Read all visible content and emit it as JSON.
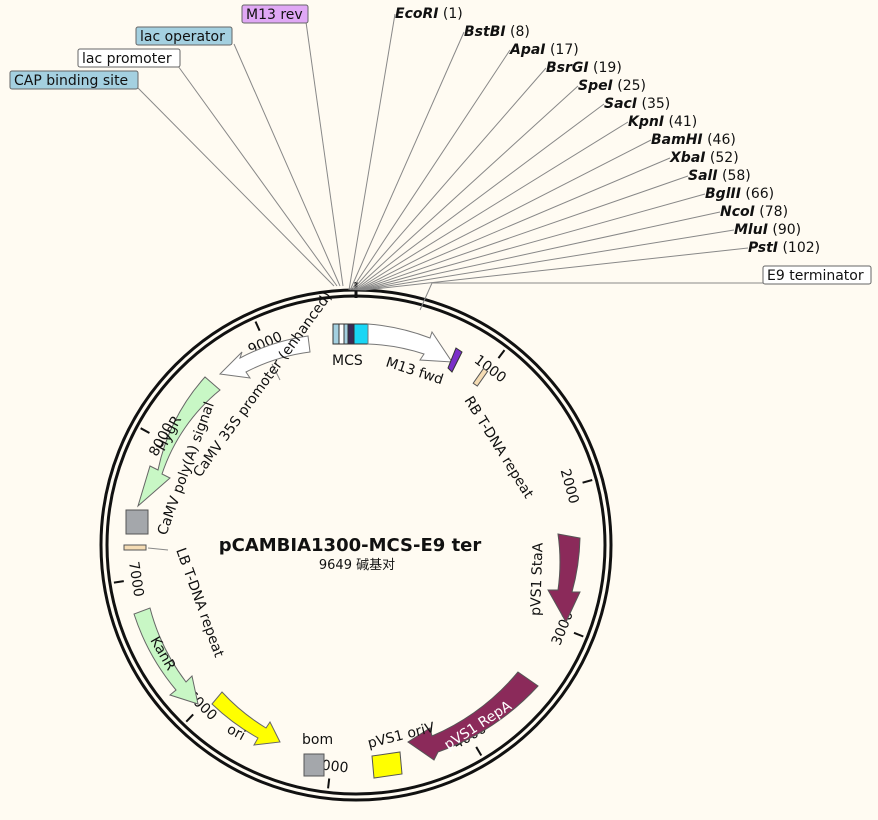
{
  "plasmid": {
    "name": "pCAMBIA1300-MCS-E9 ter",
    "size_label": "9649 碱基对",
    "length": 9649
  },
  "ticks": [
    "1000",
    "2000",
    "3000",
    "4000",
    "5000",
    "6000",
    "7000",
    "8000",
    "9000"
  ],
  "enzymes": [
    {
      "name": "EcoRI",
      "pos": "(1)"
    },
    {
      "name": "BstBI",
      "pos": "(8)"
    },
    {
      "name": "ApaI",
      "pos": "(17)"
    },
    {
      "name": "BsrGI",
      "pos": "(19)"
    },
    {
      "name": "SpeI",
      "pos": "(25)"
    },
    {
      "name": "SacI",
      "pos": "(35)"
    },
    {
      "name": "KpnI",
      "pos": "(41)"
    },
    {
      "name": "BamHI",
      "pos": "(46)"
    },
    {
      "name": "XbaI",
      "pos": "(52)"
    },
    {
      "name": "SalI",
      "pos": "(58)"
    },
    {
      "name": "BglII",
      "pos": "(66)"
    },
    {
      "name": "NcoI",
      "pos": "(78)"
    },
    {
      "name": "MluI",
      "pos": "(90)"
    },
    {
      "name": "PstI",
      "pos": "(102)"
    }
  ],
  "boxed_labels": {
    "m13_rev": "M13 rev",
    "lac_operator": "lac operator",
    "lac_promoter": "lac promoter",
    "cap_site": "CAP binding site",
    "e9_terminator": "E9 terminator"
  },
  "feature_labels": {
    "mcs": "MCS",
    "m13_fwd": "M13 fwd",
    "rb_repeat": "RB T-DNA repeat",
    "pvs1_stau": "pVS1 StaA",
    "pvs1_repa": "pVS1 RepA",
    "pvs1_oriv": "pVS1 oriV",
    "bom": "bom",
    "ori": "ori",
    "kanr": "KanR",
    "lb_repeat": "LB T-DNA repeat",
    "camv_polya": "CaMV poly(A) signal",
    "hygr": "HygR",
    "camv_promoter": "CaMV 35S promoter (enhanced)"
  },
  "colors": {
    "background": "#fffbf2",
    "stau_repa": "#8b2a5a",
    "hygr_kanr": "#c8f7c5",
    "ori_oriv": "#ffff00",
    "bom_grey": "#a4a7ab",
    "m13_purple": "#7b2fc9",
    "mcs_cyan": "#19d6f5",
    "lac_blue": "#a4d0e0",
    "m13rev_bg": "#e0a8f5",
    "repeat_tan": "#f5dcb4"
  }
}
